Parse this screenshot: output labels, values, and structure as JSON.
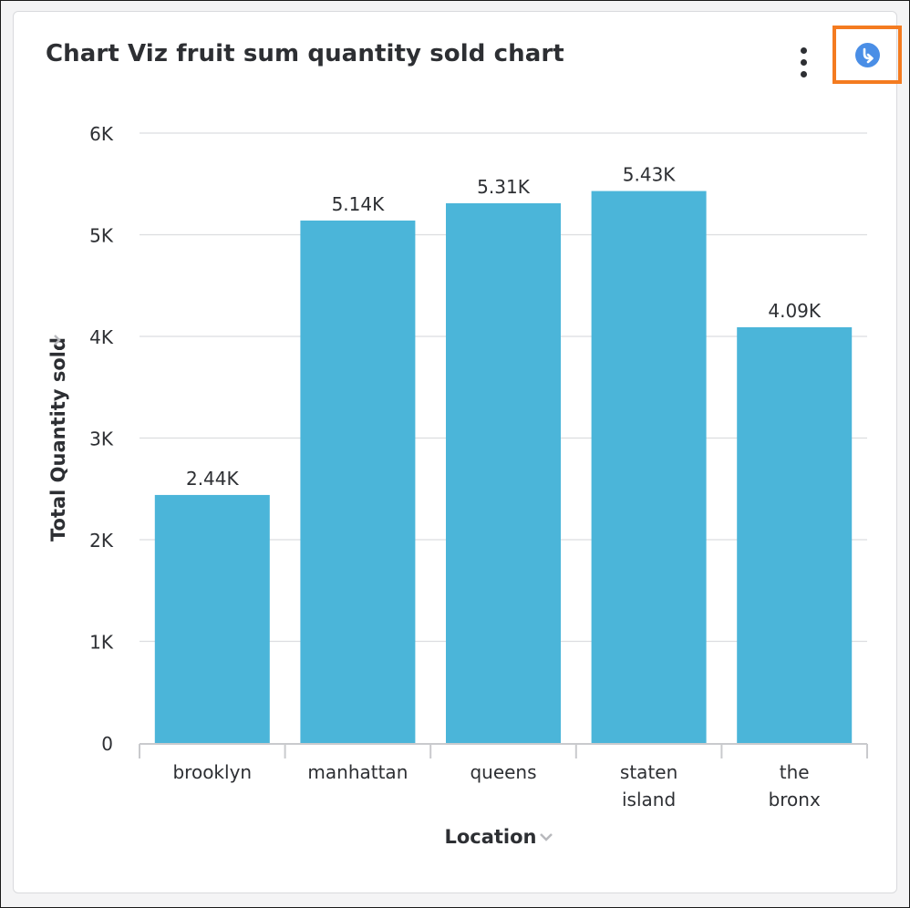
{
  "header": {
    "title": "Chart Viz fruit sum quantity sold chart",
    "more_icon": "kebab-vertical-icon",
    "download_icon": "download-arrow-icon"
  },
  "colors": {
    "bar": "#4bb5d9",
    "highlight_border": "#f47b20",
    "download_icon_bg": "#4a8ee6"
  },
  "chart_data": {
    "type": "bar",
    "categories": [
      [
        "brooklyn"
      ],
      [
        "manhattan"
      ],
      [
        "queens"
      ],
      [
        "staten",
        "island"
      ],
      [
        "the",
        "bronx"
      ]
    ],
    "values": [
      2440,
      5140,
      5310,
      5430,
      4090
    ],
    "data_labels": [
      "2.44K",
      "5.14K",
      "5.31K",
      "5.43K",
      "4.09K"
    ],
    "xlabel": "Location",
    "ylabel": "Total Quantity sold",
    "ylim": [
      0,
      6000
    ],
    "yticks": [
      0,
      1000,
      2000,
      3000,
      4000,
      5000,
      6000
    ],
    "ytick_labels": [
      "0",
      "1K",
      "2K",
      "3K",
      "4K",
      "5K",
      "6K"
    ],
    "grid": true
  }
}
